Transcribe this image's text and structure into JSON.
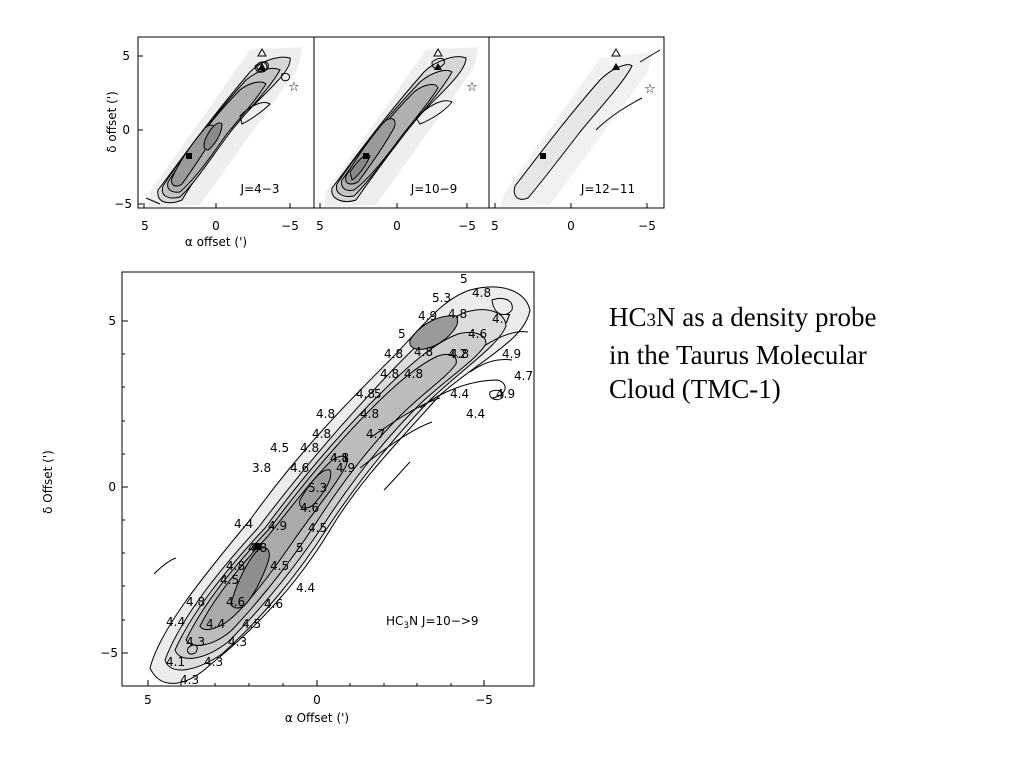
{
  "caption": {
    "molecule_main": "HC",
    "molecule_sub": "3",
    "molecule_tail": "N",
    "line1_rest": " as a density probe",
    "line2": "in the Taurus Molecular",
    "line3": "Cloud (TMC-1)"
  },
  "top_panels": {
    "ylabel": "δ offset (')",
    "xlabel": "α offset (')",
    "yticks": [
      "5",
      "0",
      "−5"
    ],
    "xticks": [
      "5",
      "0",
      "−5"
    ],
    "panels": [
      {
        "label": "J=4−3"
      },
      {
        "label": "J=10−9"
      },
      {
        "label": "J=12−11"
      }
    ]
  },
  "main_panel": {
    "ylabel": "δ Offset (')",
    "xlabel": "α Offset (')",
    "yticks": [
      "5",
      "0",
      "−5"
    ],
    "xticks": [
      "5",
      "0",
      "−5"
    ],
    "label_pre": "HC",
    "label_sub": "3",
    "label_post": "N J=10−>9",
    "density_labels": [
      "5",
      "5.3",
      "4.8",
      "4.9",
      "4.8",
      "4.7",
      "5",
      "4.6",
      "4.8",
      "4.8",
      "4.8",
      "4.2",
      "4.9",
      "4.8",
      "4.8",
      "4.7",
      "4.8",
      "4.4",
      "4.9",
      "4.8",
      "5",
      "4.4",
      "4.8",
      "4.8",
      "4.8",
      "4.7",
      "4.5",
      "4.8",
      "4.1",
      "3.8",
      "4.6",
      "4.9",
      "5.3",
      "4.6",
      "4.4",
      "4.9",
      "4.5",
      "5",
      "4.8",
      "4.8",
      "4.5",
      "4.5",
      "4.4",
      "4.8",
      "4.6",
      "4.6",
      "4.4",
      "4.4",
      "4.5",
      "4.3",
      "4.3",
      "4.1",
      "4.3",
      "4.3"
    ]
  },
  "colors": {
    "fill_light": "#e9e9e9",
    "fill_mid": "#c9c9c9",
    "fill_dark": "#9a9a9a",
    "ink": "#000000"
  }
}
